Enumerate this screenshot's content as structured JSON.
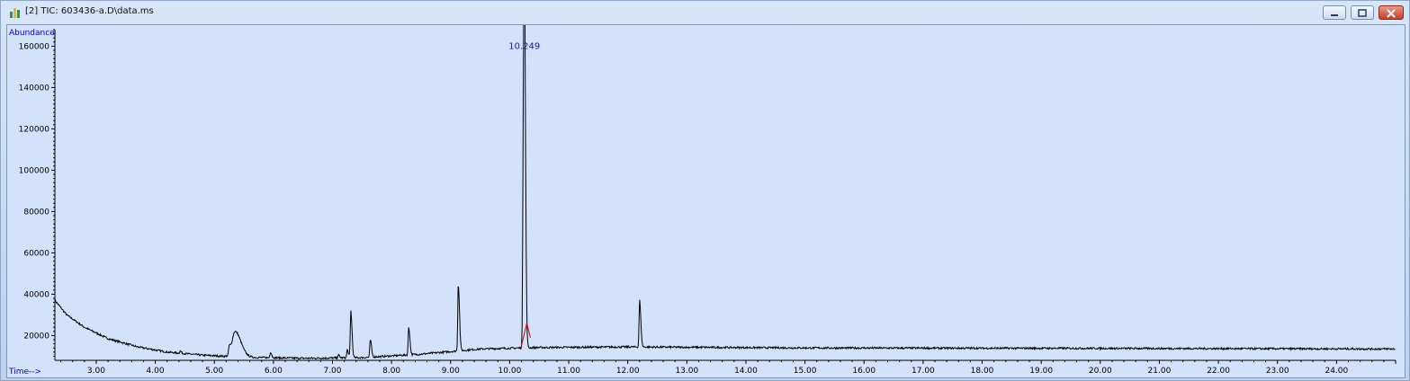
{
  "window": {
    "title": "[2] TIC: 603436-a.D\\data.ms",
    "icon": "chromatogram-icon",
    "buttons": [
      "minimize-icon",
      "maximize-icon",
      "close-icon"
    ]
  },
  "colors": {
    "plot_background": "#d2e2fa",
    "trace": "#000000",
    "integration_baseline": "#cc0000",
    "axis_label_text": "#0000cc",
    "peak_label_text": "#1a1aa0"
  },
  "chart_data": {
    "type": "line",
    "title": "",
    "xlabel": "Time-->",
    "ylabel": "Abundance",
    "xlim": [
      2.3,
      25.0
    ],
    "ylim": [
      8000,
      168000
    ],
    "x_ticks": [
      "3.00",
      "4.00",
      "5.00",
      "6.00",
      "7.00",
      "8.00",
      "9.00",
      "10.00",
      "11.00",
      "12.00",
      "13.00",
      "14.00",
      "15.00",
      "16.00",
      "17.00",
      "18.00",
      "19.00",
      "20.00",
      "21.00",
      "22.00",
      "23.00",
      "24.00"
    ],
    "y_ticks": [
      "20000",
      "40000",
      "60000",
      "80000",
      "100000",
      "120000",
      "140000",
      "160000"
    ],
    "grid": false,
    "baseline_profile": [
      [
        2.3,
        37000
      ],
      [
        2.5,
        30000
      ],
      [
        2.8,
        24000
      ],
      [
        3.2,
        18500
      ],
      [
        3.7,
        14500
      ],
      [
        4.2,
        12000
      ],
      [
        4.8,
        10500
      ],
      [
        5.5,
        9500
      ],
      [
        6.5,
        9000
      ],
      [
        7.5,
        9300
      ],
      [
        8.5,
        11000
      ],
      [
        9.5,
        13500
      ],
      [
        10.5,
        14200
      ],
      [
        12.0,
        14500
      ],
      [
        15.0,
        14000
      ],
      [
        20.0,
        13800
      ],
      [
        25.0,
        13500
      ]
    ],
    "peaks": [
      {
        "rt": 4.42,
        "height": 12500
      },
      {
        "rt": 5.25,
        "height": 13500
      },
      {
        "rt": 5.35,
        "height": 22000
      },
      {
        "rt": 5.95,
        "height": 12000
      },
      {
        "rt": 7.1,
        "height": 10500
      },
      {
        "rt": 7.25,
        "height": 13000
      },
      {
        "rt": 7.31,
        "height": 32000
      },
      {
        "rt": 7.64,
        "height": 18000
      },
      {
        "rt": 8.29,
        "height": 24000
      },
      {
        "rt": 9.13,
        "height": 45000
      },
      {
        "rt": 10.249,
        "height": 157000
      },
      {
        "rt": 10.23,
        "height": 121000
      },
      {
        "rt": 12.2,
        "height": 37000
      }
    ],
    "peak_labels": [
      {
        "rt": 10.249,
        "text": "10.249"
      }
    ],
    "integration_baseline": [
      [
        10.19,
        14000
      ],
      [
        10.29,
        26000
      ],
      [
        10.35,
        19000
      ]
    ]
  }
}
